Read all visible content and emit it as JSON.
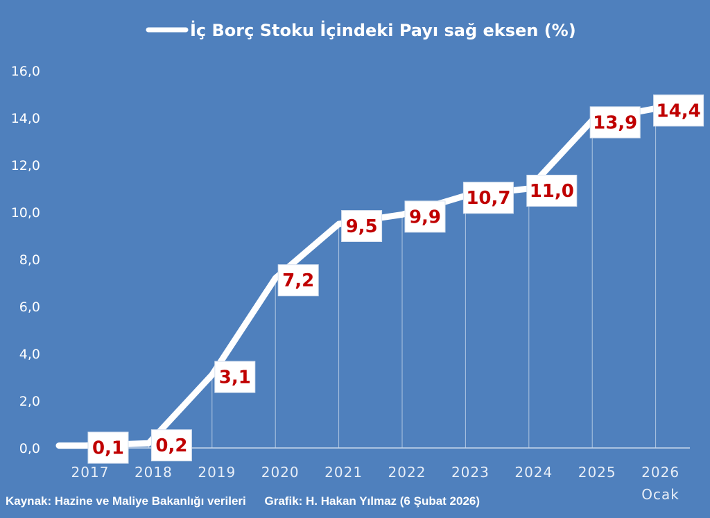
{
  "chart_data": {
    "type": "line",
    "title": "İç Borç Stoku İçindeki Payı sağ eksen (%)",
    "categories": [
      "2017",
      "2018",
      "2019",
      "2020",
      "2021",
      "2022",
      "2023",
      "2024",
      "2025",
      "2026"
    ],
    "category_sublabels": {
      "2026": "Ocak"
    },
    "series": [
      {
        "name": "İç Borç Stoku İçindeki Payı sağ eksen (%)",
        "color": "#ffffff",
        "points": [
          {
            "x": "2017",
            "y": 0.1,
            "label": "0,1"
          },
          {
            "x": "2018",
            "y": 0.2,
            "label": "0,2"
          },
          {
            "x": "2019",
            "y": 3.1,
            "label": "3,1"
          },
          {
            "x": "2020",
            "y": 7.2,
            "label": "7,2"
          },
          {
            "x": "2021",
            "y": 9.5,
            "label": "9,5"
          },
          {
            "x": "2022",
            "y": 9.9,
            "label": "9,9"
          },
          {
            "x": "2023",
            "y": 10.7,
            "label": "10,7"
          },
          {
            "x": "2024",
            "y": 11.0,
            "label": "11,0"
          },
          {
            "x": "2025",
            "y": 13.9,
            "label": "13,9"
          },
          {
            "x": "2026",
            "y": 14.4,
            "label": "14,4"
          }
        ]
      }
    ],
    "yticks": [
      "0,0",
      "2,0",
      "4,0",
      "6,0",
      "8,0",
      "10,0",
      "12,0",
      "14,0",
      "16,0"
    ],
    "ylim": [
      0,
      16
    ],
    "grid": false,
    "legend": "top-center",
    "background_color": "#4f80bd",
    "label_color": "#c00000"
  },
  "footer": {
    "source": "Kaynak: Hazine ve Maliye Bakanlığı verileri",
    "credit": "Grafik: H. Hakan Yılmaz (6 Şubat 2026)"
  }
}
